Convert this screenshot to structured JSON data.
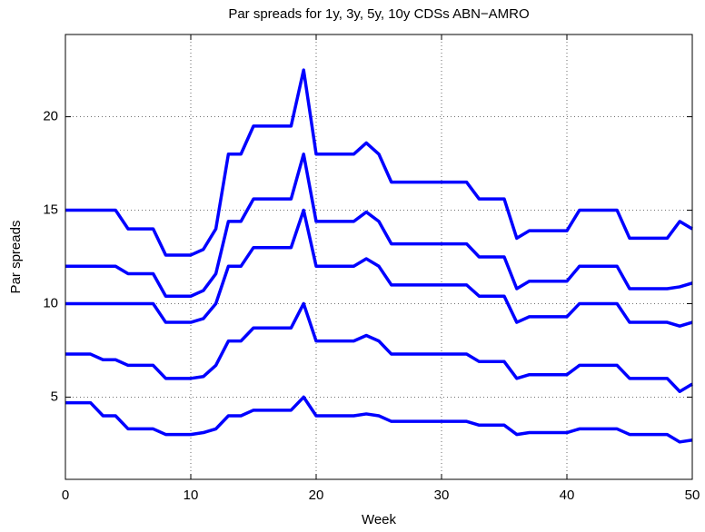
{
  "chart_data": {
    "type": "line",
    "title": "Par spreads for 1y, 3y, 5y, 10y CDSs ABN−AMRO",
    "x_label": "Week",
    "y_label": "Par spreads",
    "x": [
      0,
      1,
      2,
      3,
      4,
      5,
      6,
      7,
      8,
      9,
      10,
      11,
      12,
      13,
      14,
      15,
      16,
      17,
      18,
      19,
      20,
      21,
      22,
      23,
      24,
      25,
      26,
      27,
      28,
      29,
      30,
      31,
      32,
      33,
      34,
      35,
      36,
      37,
      38,
      39,
      40,
      41,
      42,
      43,
      44,
      45,
      46,
      47,
      48,
      49,
      50
    ],
    "series": [
      {
        "color": "#0000ff",
        "values": [
          15,
          15,
          15,
          15,
          15,
          14,
          14,
          14,
          12.6,
          12.6,
          12.6,
          12.9,
          14,
          18,
          18,
          19.5,
          19.5,
          19.5,
          19.5,
          22.5,
          18,
          18,
          18,
          18,
          18.6,
          18,
          16.5,
          16.5,
          16.5,
          16.5,
          16.5,
          16.5,
          16.5,
          15.6,
          15.6,
          15.6,
          13.5,
          13.9,
          13.9,
          13.9,
          13.9,
          15,
          15,
          15,
          15,
          13.5,
          13.5,
          13.5,
          13.5,
          14.4,
          14
        ]
      },
      {
        "color": "#0000ff",
        "values": [
          12,
          12,
          12,
          12,
          12,
          11.6,
          11.6,
          11.6,
          10.4,
          10.4,
          10.4,
          10.7,
          11.6,
          14.4,
          14.4,
          15.6,
          15.6,
          15.6,
          15.6,
          18,
          14.4,
          14.4,
          14.4,
          14.4,
          14.9,
          14.4,
          13.2,
          13.2,
          13.2,
          13.2,
          13.2,
          13.2,
          13.2,
          12.5,
          12.5,
          12.5,
          10.8,
          11.2,
          11.2,
          11.2,
          11.2,
          12,
          12,
          12,
          12,
          10.8,
          10.8,
          10.8,
          10.8,
          10.9,
          11.1
        ]
      },
      {
        "color": "#0000ff",
        "values": [
          10,
          10,
          10,
          10,
          10,
          10,
          10,
          10,
          9,
          9,
          9,
          9.2,
          10,
          12,
          12,
          13,
          13,
          13,
          13,
          15,
          12,
          12,
          12,
          12,
          12.4,
          12,
          11,
          11,
          11,
          11,
          11,
          11,
          11,
          10.4,
          10.4,
          10.4,
          9,
          9.3,
          9.3,
          9.3,
          9.3,
          10,
          10,
          10,
          10,
          9,
          9,
          9,
          9,
          8.8,
          9
        ]
      },
      {
        "color": "#0000ff",
        "values": [
          7.3,
          7.3,
          7.3,
          7,
          7,
          6.7,
          6.7,
          6.7,
          6,
          6,
          6,
          6.1,
          6.7,
          8,
          8,
          8.7,
          8.7,
          8.7,
          8.7,
          10,
          8,
          8,
          8,
          8,
          8.3,
          8,
          7.3,
          7.3,
          7.3,
          7.3,
          7.3,
          7.3,
          7.3,
          6.9,
          6.9,
          6.9,
          6,
          6.2,
          6.2,
          6.2,
          6.2,
          6.7,
          6.7,
          6.7,
          6.7,
          6,
          6,
          6,
          6,
          5.3,
          5.7
        ]
      },
      {
        "color": "#0000ff",
        "values": [
          4.7,
          4.7,
          4.7,
          4,
          4,
          3.3,
          3.3,
          3.3,
          3,
          3,
          3,
          3.1,
          3.3,
          4,
          4,
          4.3,
          4.3,
          4.3,
          4.3,
          5,
          4,
          4,
          4,
          4,
          4.1,
          4,
          3.7,
          3.7,
          3.7,
          3.7,
          3.7,
          3.7,
          3.7,
          3.5,
          3.5,
          3.5,
          3,
          3.1,
          3.1,
          3.1,
          3.1,
          3.3,
          3.3,
          3.3,
          3.3,
          3,
          3,
          3,
          3,
          2.6,
          2.7
        ]
      }
    ],
    "xlim": [
      0,
      50
    ],
    "xticks": [
      0,
      10,
      20,
      30,
      40,
      50
    ],
    "ylim": [
      0.6,
      24.4
    ],
    "yticks": [
      5,
      10,
      15,
      20
    ],
    "grid": true
  }
}
